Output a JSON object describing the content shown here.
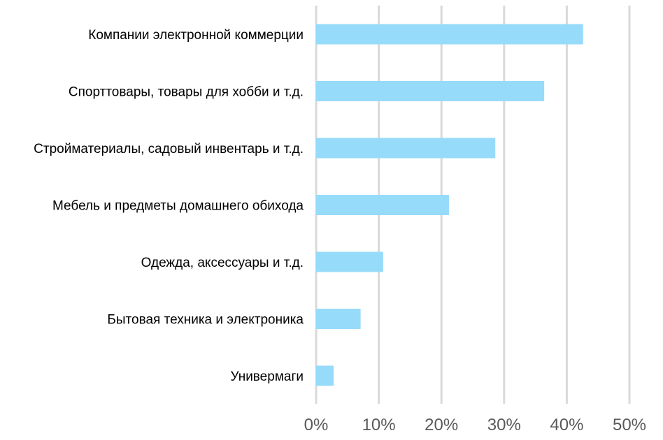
{
  "chart_data": {
    "type": "bar",
    "orientation": "horizontal",
    "categories": [
      "Компании электронной коммерции",
      "Спорттовары, товары для хобби и т.д.",
      "Стройматериалы, садовый инвентарь и т.д.",
      "Мебель и предметы домашнего обихода",
      "Одежда, аксессуары и т.д.",
      "Бытовая техника и электроника",
      "Универмаги"
    ],
    "values": [
      42.6,
      36.4,
      28.6,
      21.2,
      10.7,
      7.1,
      2.8
    ],
    "xlim": [
      0,
      50
    ],
    "xticks": [
      0,
      10,
      20,
      30,
      40,
      50
    ],
    "xtick_labels": [
      "0%",
      "10%",
      "20%",
      "30%",
      "40%",
      "50%"
    ],
    "title": "",
    "xlabel": "",
    "ylabel": "",
    "grid": "vertical",
    "legend": "none",
    "bar_color": "#97dbfa",
    "grid_color": "#d9d9d9"
  }
}
